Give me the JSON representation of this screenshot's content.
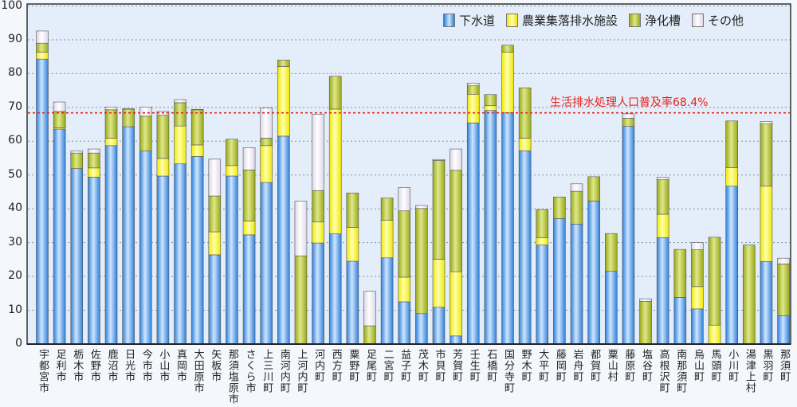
{
  "chart_data": {
    "type": "bar",
    "stacked": true,
    "title": "",
    "xlabel": "",
    "ylabel": "",
    "ylim": [
      0,
      100
    ],
    "yticks": [
      0,
      10,
      20,
      30,
      40,
      50,
      60,
      70,
      80,
      90,
      100
    ],
    "grid": true,
    "legend_position": "top-right",
    "categories": [
      "宇都宮市",
      "足利市",
      "栃木市",
      "佐野市",
      "鹿沼市",
      "日光市",
      "今市市",
      "小山市",
      "真岡市",
      "大田原市",
      "矢板市",
      "那須塩原市",
      "さくら市",
      "上三川町",
      "南河内町",
      "上河内町",
      "河内町",
      "西方町",
      "粟野町",
      "足尾町",
      "二宮町",
      "益子町",
      "茂木町",
      "市貝町",
      "芳賀町",
      "壬生町",
      "石橋町",
      "国分寺町",
      "野木町",
      "大平町",
      "藤岡町",
      "岩舟町",
      "都賀町",
      "粟山村",
      "藤原町",
      "塩谷町",
      "高根沢町",
      "南那須町",
      "烏山町",
      "馬頭町",
      "小川町",
      "湯津上村",
      "黒羽町",
      "那須町"
    ],
    "series": [
      {
        "name": "下水道",
        "color": "#3d8fe6",
        "values": [
          84.3,
          63.6,
          51.9,
          49.4,
          58.7,
          64.3,
          57.1,
          49.7,
          53.3,
          55.5,
          26.4,
          49.7,
          32.3,
          47.8,
          61.5,
          0,
          29.9,
          32.6,
          24.5,
          0,
          25.5,
          12.5,
          9.0,
          10.9,
          2.4,
          65.4,
          69.1,
          68.4,
          57.2,
          29.3,
          37.1,
          35.5,
          42.3,
          21.5,
          64.4,
          0,
          31.5,
          13.8,
          10.4,
          0,
          46.7,
          0,
          24.4,
          8.4
        ]
      },
      {
        "name": "農業集落排水施設",
        "color": "#ffff33",
        "values": [
          2.0,
          0.4,
          0,
          2.7,
          2.2,
          0,
          0,
          5.2,
          11.2,
          3.4,
          6.8,
          3.1,
          4.1,
          10.9,
          20.6,
          0,
          6.2,
          36.9,
          10.0,
          0,
          11.1,
          7.3,
          0,
          14.2,
          19.0,
          8.5,
          1.4,
          17.9,
          3.7,
          2.1,
          0,
          0,
          0,
          0,
          0,
          0,
          6.9,
          0,
          6.6,
          5.6,
          5.5,
          0,
          22.3,
          0
        ]
      },
      {
        "name": "浄化槽",
        "color": "#a9b823",
        "values": [
          2.7,
          4.8,
          4.6,
          4.4,
          8.4,
          5.2,
          10.3,
          12.8,
          6.9,
          10.4,
          10.6,
          7.8,
          15.1,
          2.2,
          1.9,
          26.1,
          9.3,
          9.7,
          10.2,
          5.4,
          6.6,
          19.6,
          31.1,
          29.2,
          30.0,
          2.5,
          3.3,
          2.1,
          14.9,
          8.4,
          6.4,
          9.7,
          7.2,
          11.2,
          2.4,
          12.6,
          10.2,
          14.2,
          10.9,
          26.0,
          13.8,
          29.3,
          18.4,
          15.3
        ]
      },
      {
        "name": "その他",
        "color": "#ebe6f2",
        "values": [
          3.6,
          2.8,
          0.6,
          1.2,
          0.8,
          0.1,
          2.7,
          1.1,
          0.9,
          0.1,
          10.9,
          0,
          6.6,
          8.9,
          0,
          16.2,
          22.6,
          0,
          0,
          10.2,
          0,
          6.9,
          0.9,
          0.3,
          6.3,
          0.8,
          0,
          0,
          0,
          0,
          0,
          2.2,
          0,
          0,
          1.3,
          0.8,
          0.7,
          0,
          2.1,
          0,
          0,
          0,
          0.7,
          1.7
        ]
      }
    ],
    "reference_line": {
      "value": 68.4,
      "label": "生活排水処理人口普及率68.4%",
      "color": "#e8201a"
    }
  }
}
